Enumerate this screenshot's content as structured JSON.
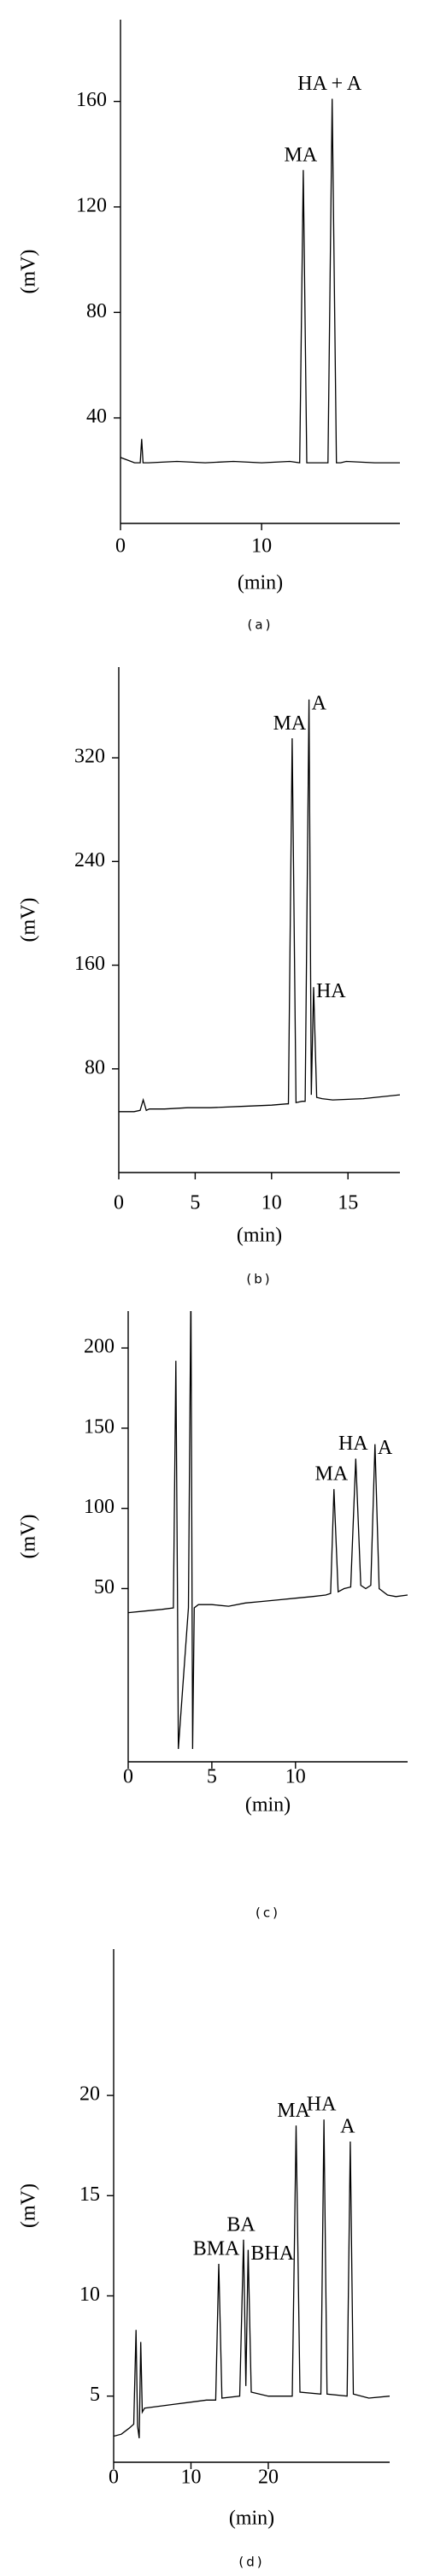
{
  "chart_data": [
    {
      "type": "line",
      "title": "(a)",
      "x_label": "(min)",
      "y_label": "(mV)",
      "xlim": [
        0,
        19.8
      ],
      "ylim": [
        0,
        191
      ],
      "xticks": [
        0,
        10
      ],
      "yticks": [
        40,
        80,
        120,
        160
      ],
      "series": [
        {
          "name": "trace",
          "color": "#000000",
          "x": [
            0,
            0.5,
            1,
            1.4,
            1.5,
            1.6,
            2,
            4,
            6,
            8,
            10,
            12,
            12.7,
            12.95,
            13.2,
            13.5,
            14,
            14.7,
            15.0,
            15.3,
            15.6,
            16,
            18,
            19.8
          ],
          "values": [
            25,
            24,
            23,
            23,
            32,
            23,
            23,
            23.5,
            23,
            23.5,
            23,
            23.5,
            23,
            134,
            23,
            23,
            23,
            23,
            161,
            23,
            23,
            23.5,
            23,
            23
          ]
        }
      ],
      "annotations": [
        {
          "text": "MA",
          "x": 12.95,
          "y": 134
        },
        {
          "text": "HA + A",
          "x": 15.0,
          "y": 161
        }
      ]
    },
    {
      "type": "line",
      "title": "(b)",
      "x_label": "(min)",
      "y_label": "(mV)",
      "xlim": [
        0,
        18.4
      ],
      "ylim": [
        0,
        390
      ],
      "xticks": [
        0,
        5,
        10,
        15
      ],
      "yticks": [
        80,
        160,
        240,
        320
      ],
      "series": [
        {
          "name": "trace",
          "color": "#000000",
          "x": [
            0,
            1,
            1.4,
            1.6,
            1.8,
            2,
            3,
            4.5,
            6,
            8,
            10,
            11,
            11.1,
            11.35,
            11.6,
            12,
            12.2,
            12.45,
            12.6,
            12.75,
            12.95,
            13.3,
            14,
            16,
            18.4
          ],
          "values": [
            47,
            47,
            48,
            56,
            48,
            49,
            49,
            50,
            50,
            51,
            52,
            53,
            53,
            335,
            54,
            55,
            55,
            365,
            60,
            143,
            58,
            57,
            56,
            57,
            60
          ]
        }
      ],
      "annotations": [
        {
          "text": "MA",
          "x": 11.35,
          "y": 335
        },
        {
          "text": "A",
          "x": 12.45,
          "y": 365
        },
        {
          "text": "HA",
          "x": 12.75,
          "y": 143
        }
      ]
    },
    {
      "type": "line",
      "title": "(c)",
      "x_label": "(min)",
      "y_label": "(mV)",
      "xlim": [
        0,
        16.7
      ],
      "ylim": [
        -58,
        223
      ],
      "xticks": [
        0,
        5,
        10
      ],
      "yticks": [
        50,
        100,
        150,
        200
      ],
      "series": [
        {
          "name": "trace",
          "color": "#000000",
          "x": [
            0,
            1,
            2,
            2.7,
            2.85,
            2.95,
            3.0,
            3.6,
            3.75,
            3.85,
            3.95,
            4.2,
            5,
            6,
            7,
            8,
            9,
            10,
            11,
            11.8,
            12.1,
            12.3,
            12.55,
            12.9,
            13.3,
            13.6,
            13.9,
            14.2,
            14.5,
            14.75,
            15.0,
            15.5,
            16,
            16.7
          ],
          "values": [
            35,
            36,
            37,
            38,
            192,
            38,
            -50,
            38,
            238,
            -50,
            38,
            40,
            40,
            39,
            41,
            42,
            43,
            44,
            45,
            46,
            47,
            112,
            48,
            50,
            51,
            131,
            52,
            50,
            52,
            140,
            50,
            46,
            45,
            46
          ]
        }
      ],
      "annotations": [
        {
          "text": "MA",
          "x": 12.3,
          "y": 112
        },
        {
          "text": "HA",
          "x": 13.6,
          "y": 131
        },
        {
          "text": "A",
          "x": 14.75,
          "y": 140
        }
      ]
    },
    {
      "type": "line",
      "title": "(d)",
      "x_label": "(min)",
      "y_label": "(mV)",
      "xlim": [
        0,
        35.7
      ],
      "ylim": [
        1.7,
        27.3
      ],
      "xticks": [
        0,
        10,
        20
      ],
      "yticks": [
        5,
        10,
        15,
        20
      ],
      "series": [
        {
          "name": "trace",
          "color": "#000000",
          "x": [
            0,
            1,
            2,
            2.6,
            2.9,
            3.1,
            3.3,
            3.5,
            3.7,
            4,
            6,
            8,
            10,
            12,
            13.2,
            13.6,
            14,
            16.3,
            16.8,
            17.1,
            17.4,
            17.8,
            20,
            23.1,
            23.6,
            24.1,
            26.8,
            27.2,
            27.6,
            30.2,
            30.6,
            31,
            33,
            35.7
          ],
          "values": [
            3,
            3.1,
            3.4,
            3.6,
            8.3,
            3.5,
            2.9,
            7.7,
            4.2,
            4.4,
            4.5,
            4.6,
            4.7,
            4.8,
            4.8,
            11.6,
            4.9,
            5.0,
            12.8,
            5.5,
            12.3,
            5.2,
            5.0,
            5.0,
            18.5,
            5.2,
            5.1,
            18.8,
            5.1,
            5.0,
            17.7,
            5.1,
            4.9,
            5.0
          ]
        }
      ],
      "annotations": [
        {
          "text": "BMA",
          "x": 13.6,
          "y": 11.6
        },
        {
          "text": "BA",
          "x": 16.8,
          "y": 12.8
        },
        {
          "text": "BHA",
          "x": 17.4,
          "y": 12.3
        },
        {
          "text": "MA",
          "x": 23.6,
          "y": 18.5
        },
        {
          "text": "HA",
          "x": 27.2,
          "y": 18.8
        },
        {
          "text": "A",
          "x": 30.6,
          "y": 17.7
        }
      ]
    }
  ]
}
